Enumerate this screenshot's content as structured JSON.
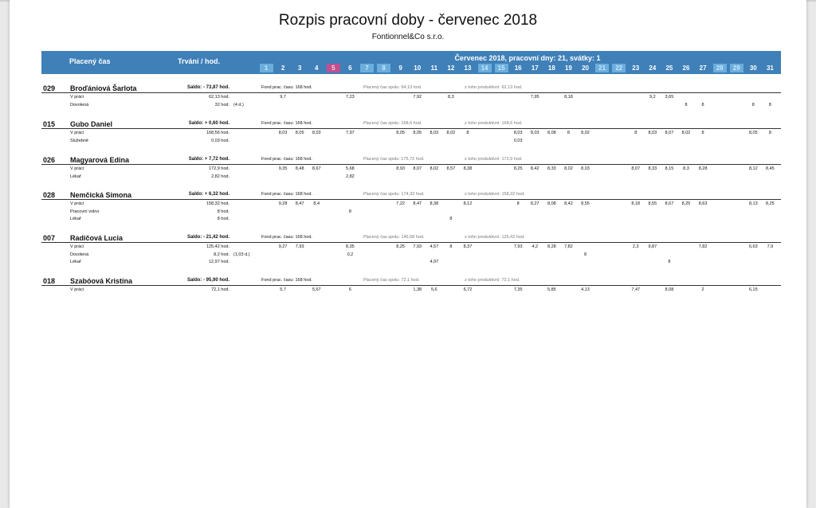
{
  "title": "Rozpis pracovní doby - červenec 2018",
  "company": "Fontionnel&Co s.r.o.",
  "header": {
    "paid_time": "Placený čas",
    "duration": "Trvání / hod.",
    "month_info": "Červenec 2018, pracovní dny: 21, svátky: 1",
    "days": [
      {
        "label": "1",
        "kind": "weekend"
      },
      {
        "label": "2",
        "kind": "work"
      },
      {
        "label": "3",
        "kind": "work"
      },
      {
        "label": "4",
        "kind": "work"
      },
      {
        "label": "5",
        "kind": "holiday"
      },
      {
        "label": "6",
        "kind": "work"
      },
      {
        "label": "7",
        "kind": "weekend"
      },
      {
        "label": "8",
        "kind": "weekend"
      },
      {
        "label": "9",
        "kind": "work"
      },
      {
        "label": "10",
        "kind": "work"
      },
      {
        "label": "11",
        "kind": "work"
      },
      {
        "label": "12",
        "kind": "work"
      },
      {
        "label": "13",
        "kind": "work"
      },
      {
        "label": "14",
        "kind": "weekend"
      },
      {
        "label": "15",
        "kind": "weekend"
      },
      {
        "label": "16",
        "kind": "work"
      },
      {
        "label": "17",
        "kind": "work"
      },
      {
        "label": "18",
        "kind": "work"
      },
      {
        "label": "19",
        "kind": "work"
      },
      {
        "label": "20",
        "kind": "work"
      },
      {
        "label": "21",
        "kind": "weekend"
      },
      {
        "label": "22",
        "kind": "weekend"
      },
      {
        "label": "23",
        "kind": "work"
      },
      {
        "label": "24",
        "kind": "work"
      },
      {
        "label": "25",
        "kind": "work"
      },
      {
        "label": "26",
        "kind": "work"
      },
      {
        "label": "27",
        "kind": "work"
      },
      {
        "label": "28",
        "kind": "weekend"
      },
      {
        "label": "29",
        "kind": "weekend"
      },
      {
        "label": "30",
        "kind": "work"
      },
      {
        "label": "31",
        "kind": "work"
      }
    ]
  },
  "colors": {
    "header": "#3f80b8",
    "weekend": "#6aaede",
    "holiday": "#c0508f"
  },
  "employees": [
    {
      "id": "029",
      "name": "Broďániová Šarlota",
      "saldo_label": "Saldo: ",
      "saldo": "- 73,87 hod.",
      "fund": "Fond prac. času: 168 hod.",
      "paid_total": "Placený čas spolu: 94,13 hod.",
      "productive": "z toho produktivní: 62,13 hod.",
      "rows": [
        {
          "type": "V práci",
          "total": "62,13 hod.",
          "note": "",
          "values": {
            "2": "9,7",
            "6": "7,23",
            "10": "7,92",
            "12": "8,3",
            "17": "7,95",
            "19": "8,18",
            "24": "9,2",
            "25": "3,65"
          }
        },
        {
          "type": "Dovolená",
          "total": "32 hod.",
          "note": "(4 d.)",
          "values": {
            "26": "8",
            "27": "8",
            "30": "8",
            "31": "8"
          }
        }
      ]
    },
    {
      "id": "015",
      "name": "Gubo Daniel",
      "saldo_label": "Saldo: ",
      "saldo": "+ 0,60 hod.",
      "fund": "Fond prac. času: 168 hod.",
      "paid_total": "Placený čas spolu: 168,6 hod.",
      "productive": "z toho produktivní: 168,6 hod.",
      "rows": [
        {
          "type": "V práci",
          "total": "168,56 hod.",
          "note": "",
          "values": {
            "2": "8,03",
            "3": "8,05",
            "4": "8,03",
            "6": "7,97",
            "9": "8,05",
            "10": "8,05",
            "11": "8,03",
            "12": "8,02",
            "13": "8",
            "16": "8,03",
            "17": "8,03",
            "18": "8,08",
            "19": "8",
            "20": "8,02",
            "23": "8",
            "24": "8,03",
            "25": "8,07",
            "26": "8,02",
            "27": "8",
            "30": "8,05",
            "31": "8"
          }
        },
        {
          "type": "Služebně",
          "total": "0,03 hod.",
          "note": "",
          "values": {
            "16": "0,03"
          }
        }
      ]
    },
    {
      "id": "026",
      "name": "Magyarová Edina",
      "saldo_label": "Saldo: ",
      "saldo": "+ 7,72 hod.",
      "fund": "Fond prac. času: 168 hod.",
      "paid_total": "Placený čas spolu: 175,72 hod.",
      "productive": "z toho produktivní: 172,9 hod.",
      "rows": [
        {
          "type": "V práci",
          "total": "172,9 hod.",
          "note": "",
          "values": {
            "2": "9,35",
            "3": "8,48",
            "4": "8,67",
            "6": "5,68",
            "9": "8,93",
            "10": "8,07",
            "11": "8,02",
            "12": "8,57",
            "13": "8,38",
            "16": "8,25",
            "17": "8,42",
            "18": "8,33",
            "19": "8,02",
            "20": "8,03",
            "23": "8,07",
            "24": "8,33",
            "25": "8,15",
            "26": "8,3",
            "27": "8,28",
            "30": "8,12",
            "31": "8,45"
          }
        },
        {
          "type": "Lékař",
          "total": "2,82 hod.",
          "note": "",
          "values": {
            "6": "2,82"
          }
        }
      ]
    },
    {
      "id": "028",
      "name": "Nemčická Simona",
      "saldo_label": "Saldo: ",
      "saldo": "+ 6,32 hod.",
      "fund": "Fond prac. času: 168 hod.",
      "paid_total": "Placený čas spolu: 174,32 hod.",
      "productive": "z toho produktivní: 158,32 hod.",
      "rows": [
        {
          "type": "V práci",
          "total": "158,32 hod.",
          "note": "",
          "values": {
            "2": "9,28",
            "3": "8,47",
            "4": "8,4",
            "9": "7,22",
            "10": "8,47",
            "11": "8,38",
            "13": "8,12",
            "16": "8",
            "17": "8,27",
            "18": "8,08",
            "19": "8,42",
            "20": "8,55",
            "23": "8,18",
            "24": "8,55",
            "25": "8,67",
            "26": "8,25",
            "27": "8,63",
            "30": "8,13",
            "31": "8,25"
          }
        },
        {
          "type": "Pracovní volno",
          "total": "8 hod.",
          "note": "",
          "values": {
            "6": "8"
          }
        },
        {
          "type": "Lékař",
          "total": "8 hod.",
          "note": "",
          "values": {
            "12": "8"
          }
        }
      ]
    },
    {
      "id": "007",
      "name": "Radičová Lucia",
      "saldo_label": "Saldo: ",
      "saldo": "- 21,42 hod.",
      "fund": "Fond prac. času: 168 hod.",
      "paid_total": "Placený čas spolu: 146,58 hod.",
      "productive": "z toho produktivní: 125,42 hod.",
      "rows": [
        {
          "type": "V práci",
          "total": "125,42 hod.",
          "note": "",
          "values": {
            "2": "9,27",
            "3": "7,93",
            "6": "8,35",
            "9": "8,25",
            "10": "7,93",
            "11": "4,57",
            "12": "8",
            "13": "8,37",
            "16": "7,93",
            "17": "4,2",
            "18": "8,28",
            "19": "7,82",
            "23": "2,3",
            "24": "9,87",
            "27": "7,82",
            "30": "6,63",
            "31": "7,9"
          }
        },
        {
          "type": "Dovolená",
          "total": "8,2 hod.",
          "note": "(1,03 d.)",
          "values": {
            "6": "0,2",
            "20": "8"
          }
        },
        {
          "type": "Lékař",
          "total": "12,97 hod.",
          "note": "",
          "values": {
            "11": "4,97",
            "25": "8"
          }
        }
      ]
    },
    {
      "id": "018",
      "name": "Szabóová Kristína",
      "saldo_label": "Saldo: ",
      "saldo": "- 95,90 hod.",
      "fund": "Fond prac. času: 168 hod.",
      "paid_total": "Placený čas spolu: 72,1 hod.",
      "productive": "z toho produktivní: 72,1 hod.",
      "rows": [
        {
          "type": "V práci",
          "total": "72,1 hod.",
          "note": "",
          "values": {
            "2": "5,7",
            "4": "5,67",
            "6": "6",
            "10": "1,38",
            "11": "5,6",
            "13": "6,72",
            "16": "7,35",
            "18": "5,85",
            "20": "4,13",
            "23": "7,47",
            "25": "8,08",
            "27": "2",
            "30": "6,15"
          }
        }
      ]
    }
  ]
}
